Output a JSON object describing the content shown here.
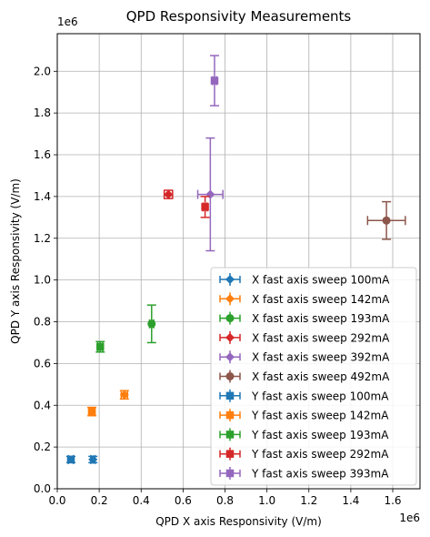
{
  "chart_data": {
    "type": "scatter",
    "title": "QPD Responsivity Measurements",
    "xlabel": "QPD X axis Responsivity (V/m)",
    "ylabel": "QPD Y axis  Responsivity (V/m)",
    "x_offset_text": "1e6",
    "y_offset_text": "1e6",
    "xlim": [
      0,
      1.73
    ],
    "ylim": [
      0,
      2.18
    ],
    "xticks": [
      0.0,
      0.2,
      0.4,
      0.6,
      0.8,
      1.0,
      1.2,
      1.4,
      1.6
    ],
    "yticks": [
      0.0,
      0.2,
      0.4,
      0.6,
      0.8,
      1.0,
      1.2,
      1.4,
      1.6,
      1.8,
      2.0
    ],
    "grid": true,
    "legend_position": "lower-right",
    "series": [
      {
        "name": "X fast axis sweep 100mA",
        "marker": "diamond",
        "color": "#1f77b4",
        "x": 0.17,
        "y": 0.14,
        "xerr": 0.01,
        "yerr": 0.015
      },
      {
        "name": "X fast axis sweep 142mA",
        "marker": "diamond",
        "color": "#ff7f0e",
        "x": 0.32,
        "y": 0.45,
        "xerr": 0.015,
        "yerr": 0.02
      },
      {
        "name": "X fast axis sweep 193mA",
        "marker": "circle",
        "color": "#2ca02c",
        "x": 0.45,
        "y": 0.79,
        "xerr": 0.01,
        "yerr": 0.09
      },
      {
        "name": "X fast axis sweep 292mA",
        "marker": "diamond",
        "color": "#d62728",
        "x": 0.53,
        "y": 1.41,
        "xerr": 0.02,
        "yerr": 0.02
      },
      {
        "name": "X fast axis sweep 392mA",
        "marker": "diamond",
        "color": "#9467bd",
        "x": 0.73,
        "y": 1.41,
        "xerr": 0.06,
        "yerr": 0.27
      },
      {
        "name": "X fast axis sweep 492mA",
        "marker": "circle",
        "color": "#8c564b",
        "x": 1.57,
        "y": 1.285,
        "xerr": 0.09,
        "yerr": 0.09
      },
      {
        "name": "Y fast axis sweep 100mA",
        "marker": "square",
        "color": "#1f77b4",
        "x": 0.065,
        "y": 0.14,
        "xerr": 0.012,
        "yerr": 0.015
      },
      {
        "name": "Y fast axis sweep 142mA",
        "marker": "square",
        "color": "#ff7f0e",
        "x": 0.165,
        "y": 0.37,
        "xerr": 0.015,
        "yerr": 0.02
      },
      {
        "name": "Y fast axis sweep 193mA",
        "marker": "square",
        "color": "#2ca02c",
        "x": 0.205,
        "y": 0.68,
        "xerr": 0.012,
        "yerr": 0.025
      },
      {
        "name": "Y fast axis sweep 292mA",
        "marker": "square",
        "color": "#d62728",
        "x": 0.705,
        "y": 1.35,
        "xerr": 0.01,
        "yerr": 0.05
      },
      {
        "name": "Y fast axis sweep 393mA",
        "marker": "square",
        "color": "#9467bd",
        "x": 0.75,
        "y": 1.955,
        "xerr": 0.01,
        "yerr": 0.12
      }
    ]
  }
}
